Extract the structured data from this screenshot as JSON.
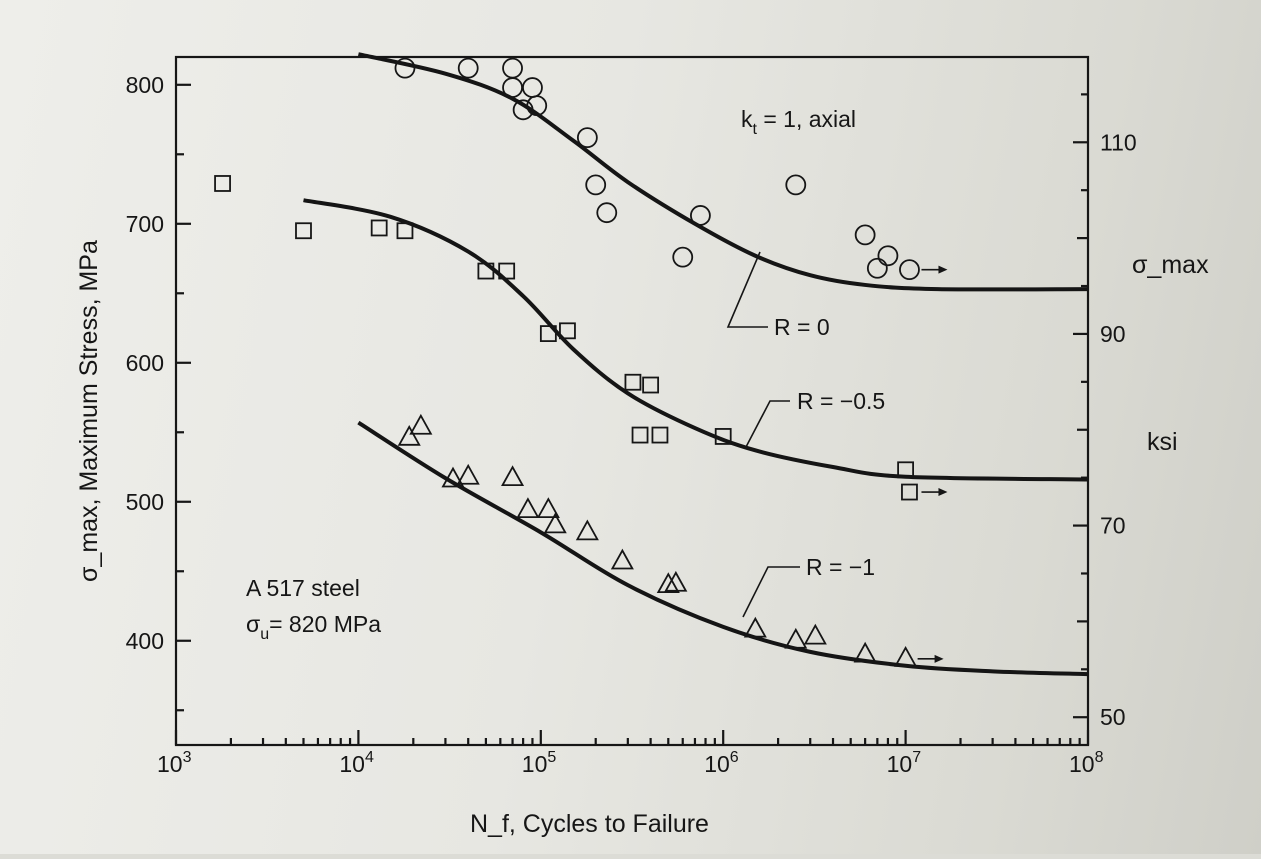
{
  "chart_data": {
    "type": "scatter",
    "title": "",
    "xlabel": "N_f, Cycles to Failure",
    "ylabel": "σ_max, Maximum Stress, MPa",
    "y2label": "σ_max",
    "y2unit": "ksi",
    "xscale": "log",
    "xlim": [
      1000,
      100000000
    ],
    "ylim": [
      325,
      820
    ],
    "y2lim": [
      47.1,
      118.9
    ],
    "x_ticks": [
      {
        "v": 1000,
        "base": "10",
        "exp": "3"
      },
      {
        "v": 10000,
        "base": "10",
        "exp": "4"
      },
      {
        "v": 100000,
        "base": "10",
        "exp": "5"
      },
      {
        "v": 1000000,
        "base": "10",
        "exp": "6"
      },
      {
        "v": 10000000,
        "base": "10",
        "exp": "7"
      },
      {
        "v": 100000000,
        "base": "10",
        "exp": "8"
      }
    ],
    "y_ticks": [
      {
        "v": 400,
        "label": "400"
      },
      {
        "v": 500,
        "label": "500"
      },
      {
        "v": 600,
        "label": "600"
      },
      {
        "v": 700,
        "label": "700"
      },
      {
        "v": 800,
        "label": "800"
      }
    ],
    "y2_ticks": [
      {
        "v": 50,
        "label": "50"
      },
      {
        "v": 70,
        "label": "70"
      },
      {
        "v": 90,
        "label": "90"
      },
      {
        "v": 110,
        "label": "110"
      }
    ],
    "annotations": {
      "kt_main": "k",
      "kt_sub": "t",
      "kt_rest": " = 1, axial",
      "material_line1": "A 517 steel",
      "material_line2_main": "σ",
      "material_line2_sub": "u",
      "material_line2_rest": "= 820 MPa"
    },
    "series": [
      {
        "name": "R = 0",
        "marker": "circle",
        "curve": [
          [
            10000,
            822
          ],
          [
            30000,
            808
          ],
          [
            70000,
            790
          ],
          [
            150000,
            760
          ],
          [
            300000,
            730
          ],
          [
            700000,
            700
          ],
          [
            1500000,
            677
          ],
          [
            3000000,
            663
          ],
          [
            6000000,
            656
          ],
          [
            15000000,
            653
          ],
          [
            100000000,
            653
          ]
        ],
        "points": [
          {
            "x": 18000,
            "y": 812
          },
          {
            "x": 40000,
            "y": 812
          },
          {
            "x": 70000,
            "y": 812
          },
          {
            "x": 70000,
            "y": 798
          },
          {
            "x": 90000,
            "y": 798
          },
          {
            "x": 80000,
            "y": 782
          },
          {
            "x": 95000,
            "y": 785
          },
          {
            "x": 180000,
            "y": 762
          },
          {
            "x": 200000,
            "y": 728
          },
          {
            "x": 230000,
            "y": 708
          },
          {
            "x": 750000,
            "y": 706
          },
          {
            "x": 600000,
            "y": 676
          },
          {
            "x": 2500000,
            "y": 728
          },
          {
            "x": 6000000,
            "y": 692
          },
          {
            "x": 8000000,
            "y": 677
          },
          {
            "x": 7000000,
            "y": 668
          },
          {
            "x": 10500000,
            "y": 667,
            "runout": true
          }
        ]
      },
      {
        "name": "R = −0.5",
        "marker": "square",
        "curve": [
          [
            5000,
            717
          ],
          [
            15000,
            705
          ],
          [
            40000,
            680
          ],
          [
            80000,
            648
          ],
          [
            150000,
            610
          ],
          [
            300000,
            578
          ],
          [
            700000,
            553
          ],
          [
            1500000,
            537
          ],
          [
            4000000,
            525
          ],
          [
            10000000,
            518
          ],
          [
            100000000,
            516
          ]
        ],
        "points": [
          {
            "x": 1800,
            "y": 729
          },
          {
            "x": 5000,
            "y": 695
          },
          {
            "x": 13000,
            "y": 697
          },
          {
            "x": 18000,
            "y": 695
          },
          {
            "x": 50000,
            "y": 666
          },
          {
            "x": 65000,
            "y": 666
          },
          {
            "x": 110000,
            "y": 621
          },
          {
            "x": 140000,
            "y": 623
          },
          {
            "x": 320000,
            "y": 586
          },
          {
            "x": 400000,
            "y": 584
          },
          {
            "x": 350000,
            "y": 548
          },
          {
            "x": 450000,
            "y": 548
          },
          {
            "x": 1000000,
            "y": 547
          },
          {
            "x": 10000000,
            "y": 523
          },
          {
            "x": 10500000,
            "y": 507,
            "runout": true
          }
        ]
      },
      {
        "name": "R = −1",
        "marker": "triangle",
        "curve": [
          [
            10000,
            557
          ],
          [
            30000,
            517
          ],
          [
            100000,
            478
          ],
          [
            300000,
            440
          ],
          [
            1000000,
            410
          ],
          [
            3000000,
            392
          ],
          [
            10000000,
            382
          ],
          [
            30000000,
            378
          ],
          [
            100000000,
            376
          ]
        ],
        "points": [
          {
            "x": 19000,
            "y": 546
          },
          {
            "x": 22000,
            "y": 554
          },
          {
            "x": 33000,
            "y": 516
          },
          {
            "x": 40000,
            "y": 518
          },
          {
            "x": 70000,
            "y": 517
          },
          {
            "x": 85000,
            "y": 494
          },
          {
            "x": 110000,
            "y": 494
          },
          {
            "x": 120000,
            "y": 483
          },
          {
            "x": 180000,
            "y": 478
          },
          {
            "x": 280000,
            "y": 457
          },
          {
            "x": 500000,
            "y": 440
          },
          {
            "x": 550000,
            "y": 441
          },
          {
            "x": 1500000,
            "y": 408
          },
          {
            "x": 2500000,
            "y": 400
          },
          {
            "x": 3200000,
            "y": 403
          },
          {
            "x": 6000000,
            "y": 390
          },
          {
            "x": 10000000,
            "y": 387,
            "runout": true
          }
        ]
      }
    ],
    "legend": "inline labels on curves"
  },
  "accent_color": "#161616"
}
